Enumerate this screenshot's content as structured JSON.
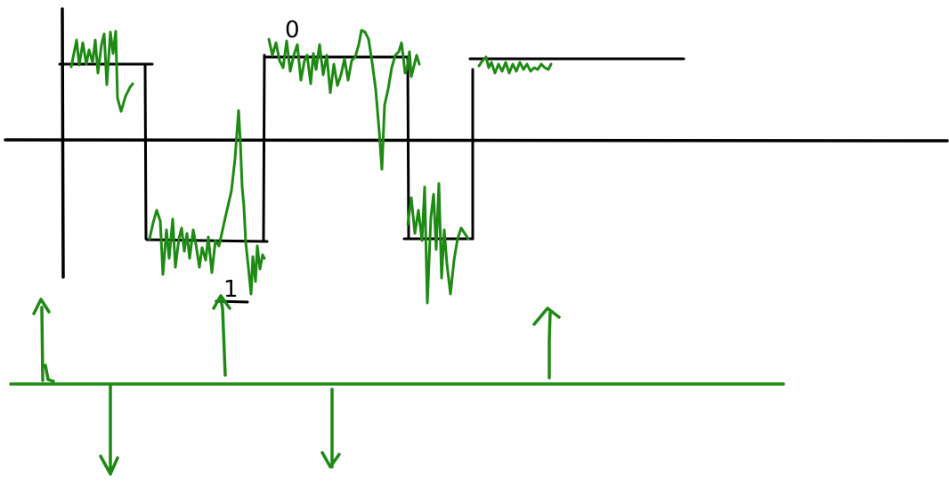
{
  "colors": {
    "background": "#ffffff",
    "ideal_signal": "#000000",
    "noisy_signal": "#1e8a14",
    "impulse_train": "#1e8a14"
  },
  "annotations": {
    "zero_mark": "0",
    "one_mark": "1"
  },
  "signal": {
    "levels": [
      "high",
      "low",
      "high",
      "low",
      "high"
    ]
  },
  "impulses": {
    "directions": [
      "up",
      "down",
      "up",
      "down",
      "up"
    ]
  }
}
